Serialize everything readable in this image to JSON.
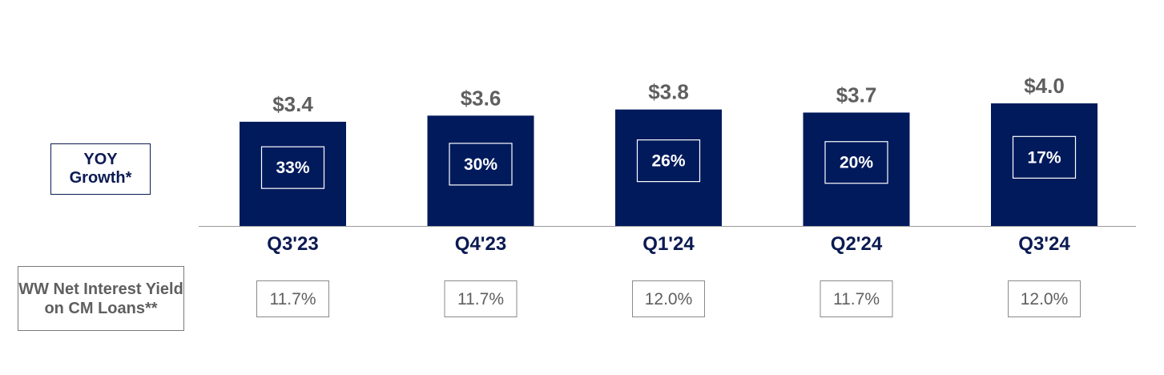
{
  "chart_data": {
    "type": "bar",
    "categories": [
      "Q3'23",
      "Q4'23",
      "Q1'24",
      "Q2'24",
      "Q3'24"
    ],
    "values": [
      3.4,
      3.6,
      3.8,
      3.7,
      4.0
    ],
    "value_labels": [
      "$3.4",
      "$3.6",
      "$3.8",
      "$3.7",
      "$4.0"
    ],
    "yoy_growth": [
      "33%",
      "30%",
      "26%",
      "20%",
      "17%"
    ],
    "ww_net_interest_yield": [
      "11.7%",
      "11.7%",
      "12.0%",
      "11.7%",
      "12.0%"
    ],
    "ylim": [
      0,
      4.0
    ],
    "grid": false,
    "colors": {
      "bar": "#001a5c",
      "axis": "#9a9a9a",
      "category_text": "#0b1a52",
      "value_text": "#5f5f5f"
    }
  },
  "legends": {
    "yoy_growth": "YOY Growth*",
    "yield": "WW Net Interest Yield on CM Loans**"
  }
}
